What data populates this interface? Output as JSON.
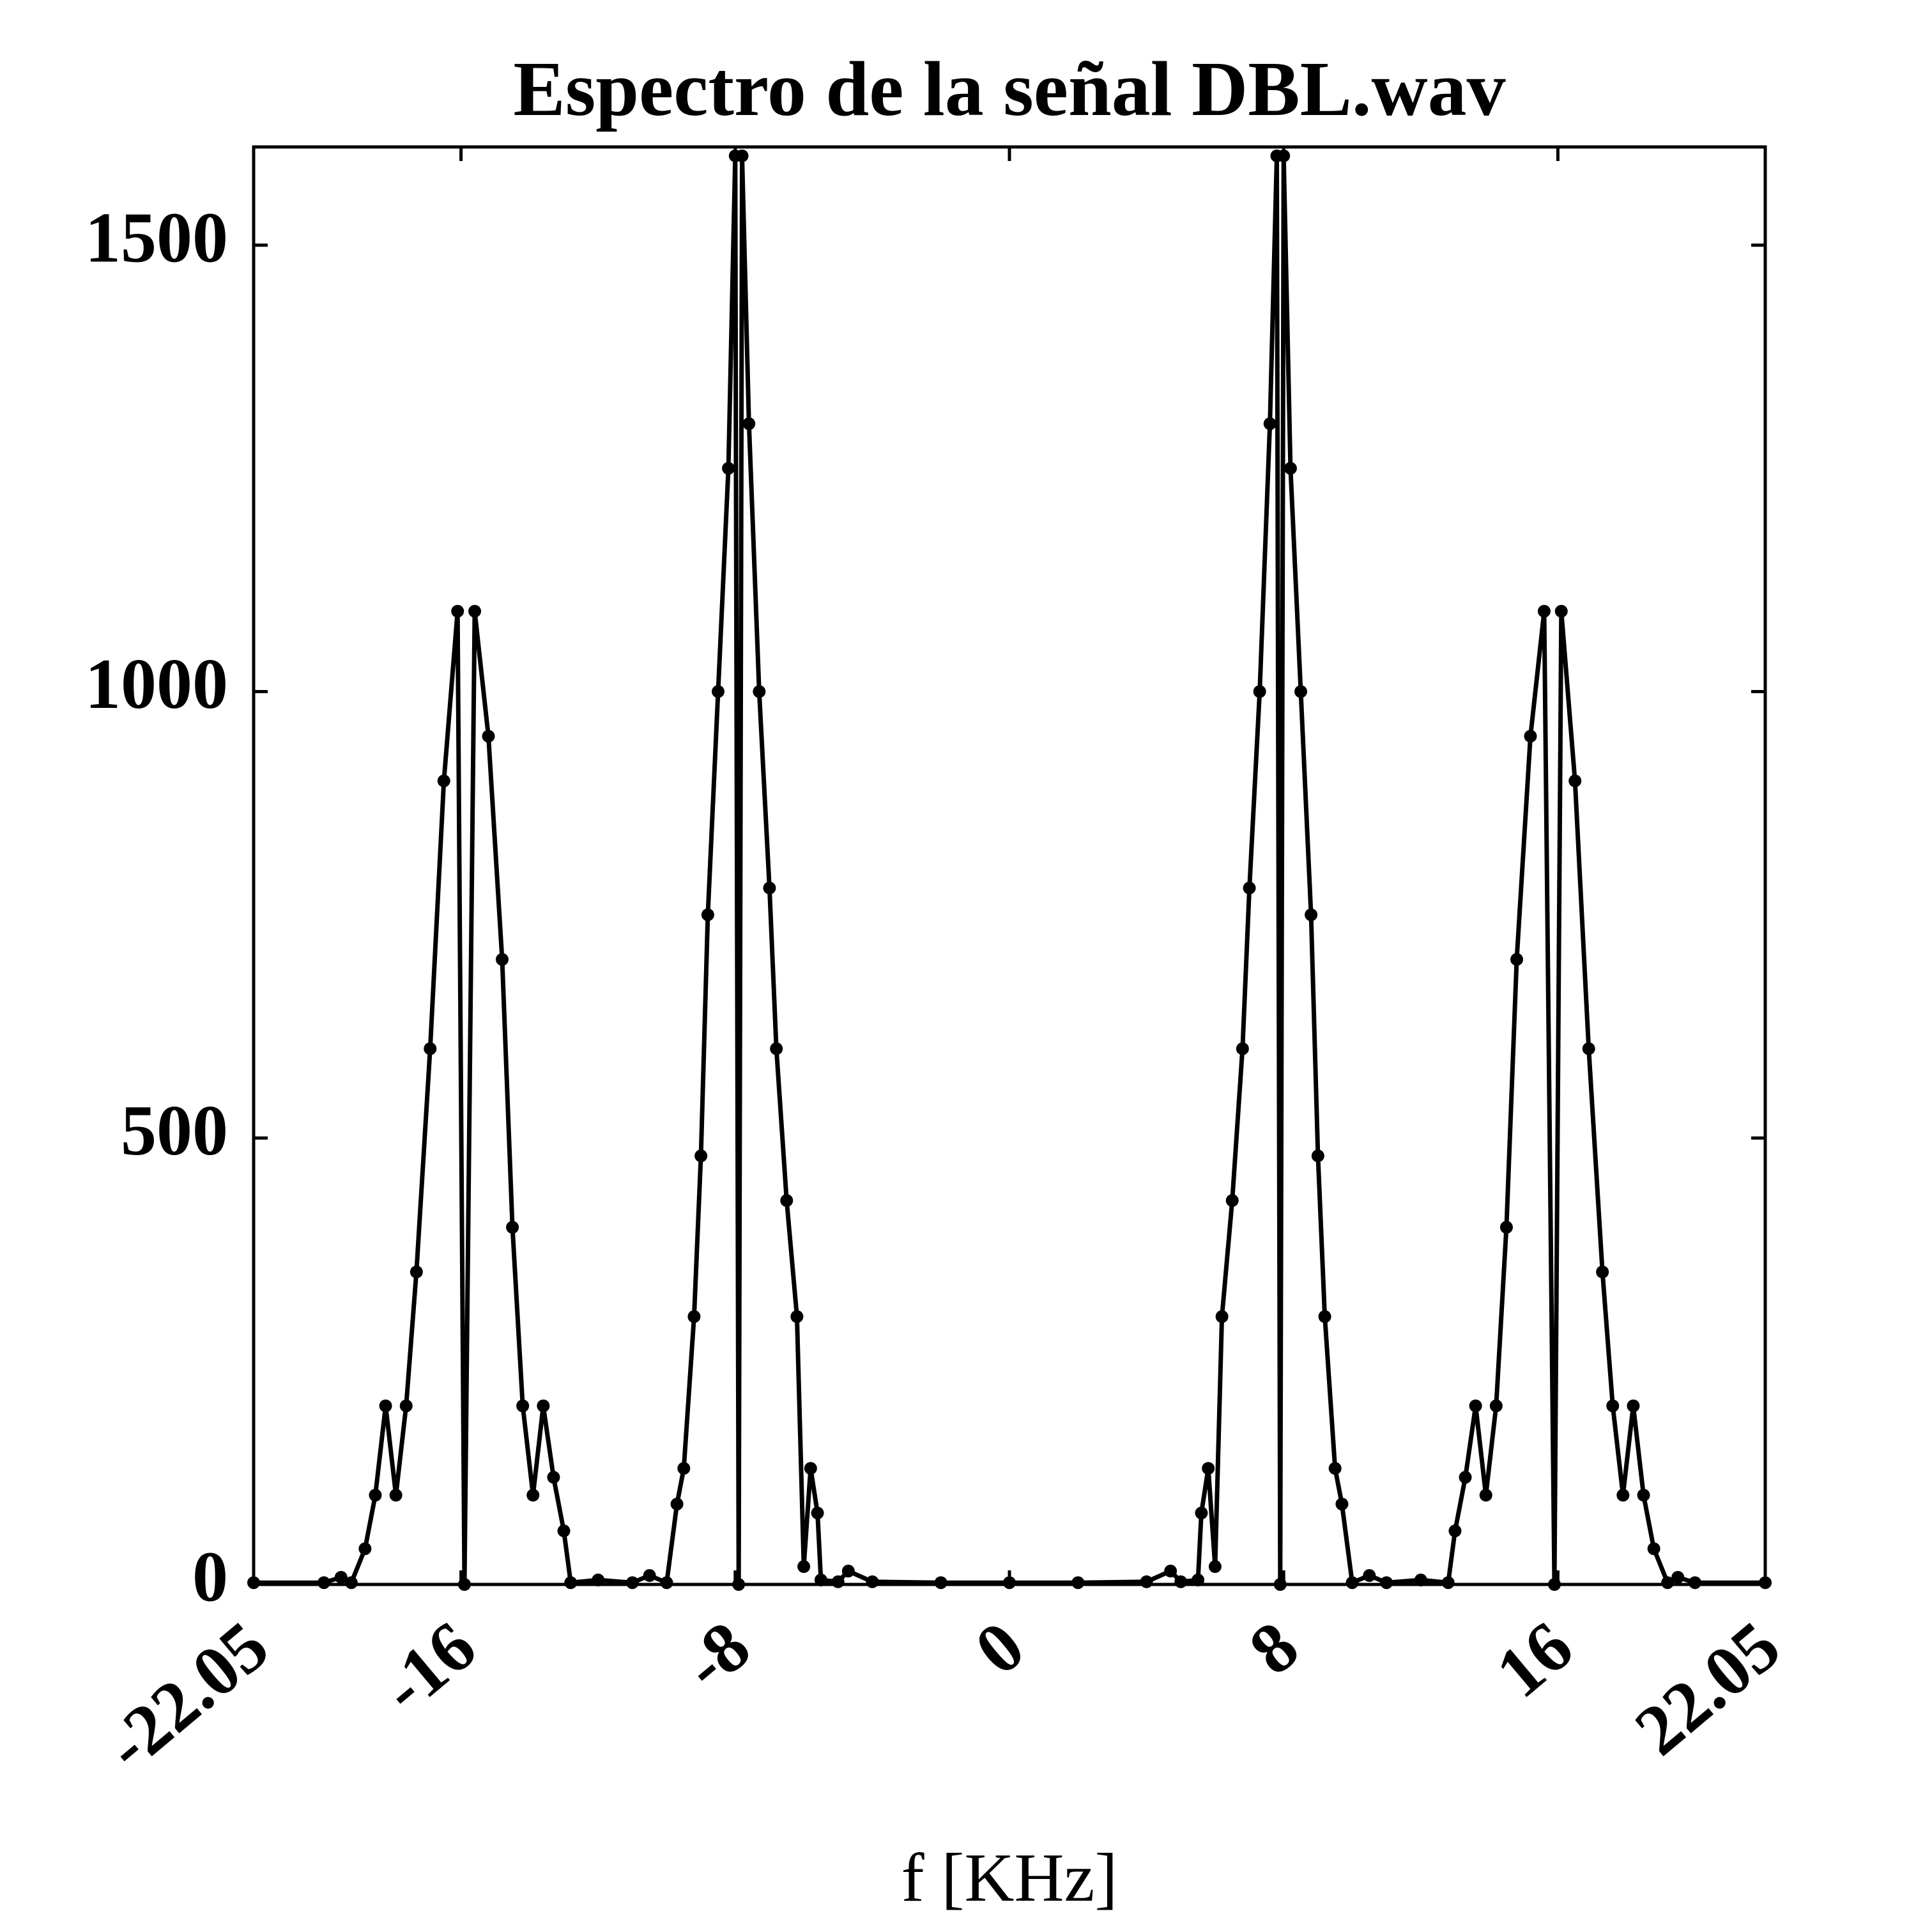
{
  "chart_data": {
    "type": "line",
    "title": "Espectro de la señal DBL.wav",
    "x_label": "f [KHz]",
    "x": [
      -22.05,
      -20,
      -19.5,
      -19.2,
      -18.8,
      -18.5,
      -18.2,
      -17.9,
      -17.6,
      -17.3,
      -16.9,
      -16.5,
      -16.1,
      -15.9,
      -15.6,
      -15.2,
      -14.8,
      -14.5,
      -14.2,
      -13.9,
      -13.6,
      -13.3,
      -13,
      -12.8,
      -12,
      -11,
      -10.5,
      -10,
      -9.7,
      -9.5,
      -9.2,
      -9,
      -8.8,
      -8.5,
      -8.2,
      -8,
      -7.9,
      -7.8,
      -7.6,
      -7.3,
      -7,
      -6.8,
      -6.5,
      -6.2,
      -6,
      -5.8,
      -5.6,
      -5.5,
      -5,
      -4.7,
      -4,
      -2,
      0,
      2,
      4,
      4.7,
      5,
      5.5,
      5.6,
      5.8,
      6,
      6.2,
      6.5,
      6.8,
      7,
      7.3,
      7.6,
      7.8,
      7.9,
      8,
      8.2,
      8.5,
      8.8,
      9,
      9.2,
      9.5,
      9.7,
      10,
      10.5,
      11,
      12,
      12.8,
      13,
      13.3,
      13.6,
      13.9,
      14.2,
      14.5,
      14.8,
      15.2,
      15.6,
      15.9,
      16.1,
      16.5,
      16.9,
      17.3,
      17.6,
      17.9,
      18.2,
      18.5,
      18.8,
      19.2,
      19.5,
      20,
      22.05
    ],
    "series": [
      {
        "color": "#000000",
        "values": [
          2,
          2,
          8,
          2,
          40,
          100,
          200,
          100,
          200,
          350,
          600,
          900,
          1090,
          0,
          1090,
          950,
          700,
          400,
          200,
          100,
          200,
          120,
          60,
          2,
          5,
          2,
          10,
          2,
          90,
          130,
          300,
          480,
          750,
          1000,
          1250,
          1600,
          0,
          1600,
          1300,
          1000,
          780,
          600,
          430,
          300,
          20,
          130,
          80,
          5,
          3,
          15,
          3,
          2,
          2,
          2,
          3,
          15,
          3,
          5,
          80,
          130,
          20,
          300,
          430,
          600,
          780,
          1000,
          1300,
          1600,
          0,
          1600,
          1250,
          1000,
          750,
          480,
          300,
          130,
          90,
          2,
          10,
          2,
          5,
          2,
          60,
          120,
          200,
          100,
          200,
          400,
          700,
          950,
          1090,
          0,
          1090,
          900,
          600,
          350,
          200,
          100,
          200,
          100,
          40,
          2,
          8,
          2,
          2
        ]
      }
    ],
    "xlim": [
      -22.05,
      22.05
    ],
    "xticks": [
      -22.05,
      -16,
      -8,
      0,
      8,
      16,
      22.05
    ],
    "ylim": [
      0,
      1610
    ],
    "yticks": [
      0,
      500,
      1000,
      1500
    ],
    "grid": false
  }
}
